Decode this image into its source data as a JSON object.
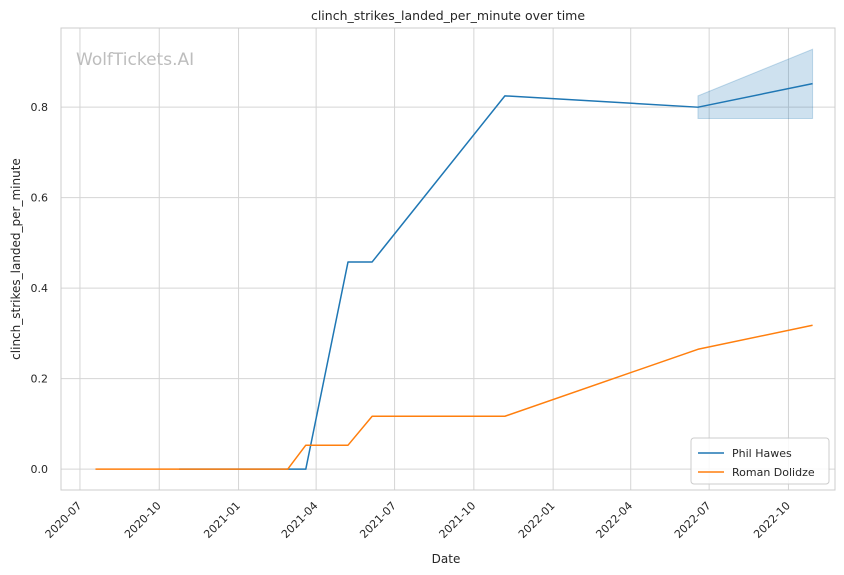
{
  "chart_data": {
    "type": "line",
    "title": "clinch_strikes_landed_per_minute over time",
    "xlabel": "Date",
    "ylabel": "clinch_strikes_landed_per_minute",
    "watermark": "WolfTickets.AI",
    "xlim": [
      "2020-06-09",
      "2022-11-24"
    ],
    "ylim": [
      -0.046,
      0.975
    ],
    "x_ticks": [
      "2020-07",
      "2020-10",
      "2021-01",
      "2021-04",
      "2021-07",
      "2021-10",
      "2022-01",
      "2022-04",
      "2022-07",
      "2022-10"
    ],
    "y_ticks": [
      0.0,
      0.2,
      0.4,
      0.6,
      0.8
    ],
    "y_tick_labels": [
      "0.0",
      "0.2",
      "0.4",
      "0.6",
      "0.8"
    ],
    "grid": true,
    "legend_position": "bottom-right",
    "series": [
      {
        "name": "Phil Hawes",
        "color": "#1f77b4",
        "points": [
          {
            "x": "2020-10-24",
            "y": 0.0
          },
          {
            "x": "2021-03-20",
            "y": 0.0
          },
          {
            "x": "2021-05-08",
            "y": 0.458
          },
          {
            "x": "2021-06-05",
            "y": 0.458
          },
          {
            "x": "2021-11-06",
            "y": 0.825
          },
          {
            "x": "2022-06-18",
            "y": 0.8
          },
          {
            "x": "2022-10-29",
            "y": 0.852
          }
        ],
        "band": [
          {
            "x": "2022-06-18",
            "low": 0.775,
            "high": 0.825
          },
          {
            "x": "2022-10-29",
            "low": 0.775,
            "high": 0.928
          }
        ]
      },
      {
        "name": "Roman Dolidze",
        "color": "#ff7f0e",
        "points": [
          {
            "x": "2020-07-19",
            "y": 0.0
          },
          {
            "x": "2021-02-27",
            "y": 0.0
          },
          {
            "x": "2021-03-20",
            "y": 0.053
          },
          {
            "x": "2021-05-08",
            "y": 0.053
          },
          {
            "x": "2021-06-05",
            "y": 0.117
          },
          {
            "x": "2021-11-06",
            "y": 0.117
          },
          {
            "x": "2022-06-18",
            "y": 0.265
          },
          {
            "x": "2022-10-29",
            "y": 0.318
          }
        ]
      }
    ]
  }
}
